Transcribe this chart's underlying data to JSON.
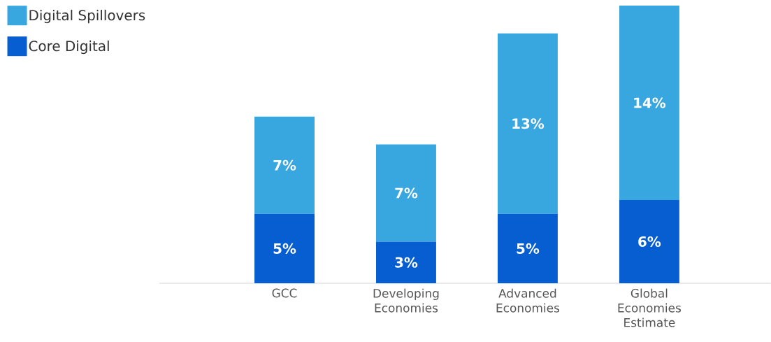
{
  "chart_data": {
    "type": "bar",
    "stacked": true,
    "legend": "top left",
    "categories": [
      "GCC",
      "Developing Economies",
      "Advanced Economies",
      "Global Economies Estimate"
    ],
    "series": [
      {
        "name": "Core Digital",
        "color": "#065ed0",
        "values": [
          5,
          3,
          5,
          6
        ],
        "value_labels": [
          "5%",
          "3%",
          "5%",
          "6%"
        ]
      },
      {
        "name": "Digital Spillovers",
        "color": "#38a6df",
        "values": [
          7,
          7,
          13,
          14
        ],
        "value_labels": [
          "7%",
          "7%",
          "13%",
          "14%"
        ]
      }
    ]
  }
}
